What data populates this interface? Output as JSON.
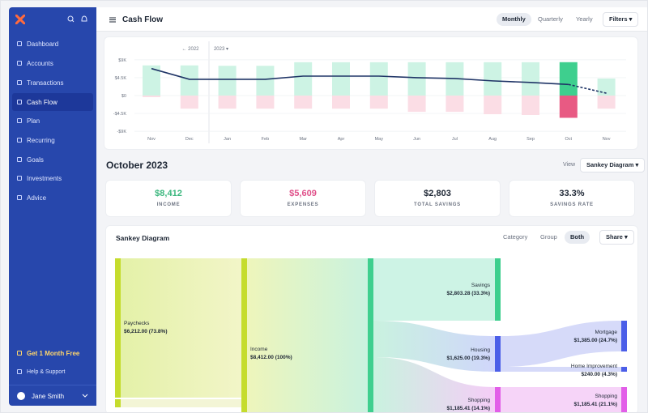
{
  "sidebar": {
    "nav": [
      "Dashboard",
      "Accounts",
      "Transactions",
      "Cash Flow",
      "Plan",
      "Recurring",
      "Goals",
      "Investments",
      "Advice"
    ],
    "promo": "Get 1 Month Free",
    "help": "Help & Support",
    "user": "Jane Smith"
  },
  "header": {
    "title": "Cash Flow",
    "periods": [
      "Monthly",
      "Quarterly",
      "Yearly"
    ],
    "filters": "Filters"
  },
  "chart_data": {
    "type": "bar",
    "year_labels": [
      "2022",
      "2023"
    ],
    "categories": [
      "Nov",
      "Dec",
      "Jan",
      "Feb",
      "Mar",
      "Apr",
      "May",
      "Jun",
      "Jul",
      "Aug",
      "Sep",
      "Oct",
      "Nov"
    ],
    "series": [
      {
        "color": "#cdf3e4",
        "values": [
          7600,
          7600,
          7500,
          7500,
          8400,
          8400,
          8400,
          8400,
          8400,
          8400,
          8400,
          8412,
          4300
        ]
      },
      {
        "color": "#fbdde5",
        "values": [
          -400,
          -3300,
          -3300,
          -3300,
          -3300,
          -3300,
          -3300,
          -4100,
          -4100,
          -4700,
          -4900,
          -5609,
          -3300
        ]
      },
      {
        "type": "line",
        "color": "#1f3466",
        "values": [
          6800,
          4100,
          4100,
          4100,
          4900,
          4900,
          4900,
          4500,
          4300,
          3700,
          3300,
          2803,
          600
        ]
      }
    ],
    "highlight_colors": [
      "#3ecf8e",
      "#e85a83"
    ],
    "ylim": [
      -10000,
      10000
    ],
    "yticks": [
      {
        "value": 9000,
        "label": "$9K"
      },
      {
        "value": 4500,
        "label": "$4.5K"
      },
      {
        "value": 0,
        "label": "$0"
      },
      {
        "value": -4500,
        "label": "-$4.5K"
      },
      {
        "value": -9000,
        "label": "-$9K"
      }
    ],
    "grid": true
  },
  "summary": {
    "heading": "October 2023",
    "view_label": "View",
    "view": "Sankey Diagram",
    "stats": [
      {
        "value": "$8,412",
        "label": "INCOME"
      },
      {
        "value": "$5,609",
        "label": "EXPENSES"
      },
      {
        "value": "$2,803",
        "label": "TOTAL SAVINGS"
      },
      {
        "value": "33.3%",
        "label": "SAVINGS RATE"
      }
    ]
  },
  "sankey": {
    "title": "Sankey Diagram",
    "modes": [
      "Category",
      "Group",
      "Both"
    ],
    "share": "Share",
    "nodes": [
      {
        "label": "Paychecks",
        "amount": "$6,212.00 (73.8%)"
      },
      {
        "label": "Income",
        "amount": "$8,412.00 (100%)"
      },
      {
        "label": "Savings",
        "amount": "$2,803.28 (33.3%)"
      },
      {
        "label": "Housing",
        "amount": "$1,625.00 (19.3%)"
      },
      {
        "label": "Shopping",
        "amount": "$1,185.41 (14.1%)"
      },
      {
        "label": "Mortgage",
        "amount": "$1,385.00 (24.7%)"
      },
      {
        "label": "Home Improvement",
        "amount": "$240.00 (4.3%)"
      },
      {
        "label": "Shopping",
        "amount": "$1,185.41 (21.1%)"
      }
    ]
  }
}
